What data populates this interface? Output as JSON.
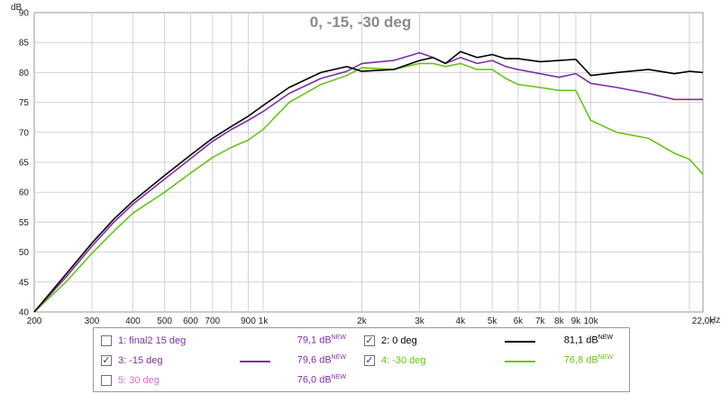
{
  "chart_data": {
    "type": "line",
    "title": "0, -15, -30 deg",
    "ylabel": "dB",
    "xunit": "Hz",
    "xscale": "log",
    "xlim": [
      200,
      22000
    ],
    "ylim": [
      40,
      90
    ],
    "yticks": [
      "40",
      "45",
      "50",
      "55",
      "60",
      "65",
      "70",
      "75",
      "80",
      "85",
      "90"
    ],
    "xticks": [
      {
        "v": 200,
        "label": "200"
      },
      {
        "v": 300,
        "label": "300"
      },
      {
        "v": 400,
        "label": "400"
      },
      {
        "v": 500,
        "label": "500"
      },
      {
        "v": 600,
        "label": "600"
      },
      {
        "v": 700,
        "label": "700"
      },
      {
        "v": 900,
        "label": "900"
      },
      {
        "v": 1000,
        "label": "1k"
      },
      {
        "v": 2000,
        "label": "2k"
      },
      {
        "v": 3000,
        "label": "3k"
      },
      {
        "v": 4000,
        "label": "4k"
      },
      {
        "v": 5000,
        "label": "5k"
      },
      {
        "v": 6000,
        "label": "6k"
      },
      {
        "v": 7000,
        "label": "7k"
      },
      {
        "v": 8000,
        "label": "8k"
      },
      {
        "v": 9000,
        "label": "9k"
      },
      {
        "v": 10000,
        "label": "10k"
      },
      {
        "v": 22000,
        "label": "22,0k"
      }
    ],
    "minor_x": [
      800,
      20000
    ],
    "series": [
      {
        "name": "0 deg",
        "color": "#000000",
        "x": [
          200,
          250,
          300,
          350,
          400,
          500,
          600,
          700,
          800,
          900,
          1000,
          1200,
          1500,
          1800,
          2000,
          2500,
          3000,
          3300,
          3600,
          4000,
          4500,
          5000,
          5500,
          6000,
          7000,
          8000,
          9000,
          10000,
          12000,
          15000,
          18000,
          20000,
          22000
        ],
        "y": [
          40,
          46.3,
          51.5,
          55.5,
          58.5,
          62.8,
          66.2,
          69,
          71,
          72.7,
          74.5,
          77.5,
          80,
          81,
          80.2,
          80.5,
          82,
          82.5,
          81.5,
          83.5,
          82.5,
          83,
          82.3,
          82.3,
          81.8,
          82,
          82.2,
          79.5,
          80,
          80.5,
          79.8,
          80.2,
          80
        ]
      },
      {
        "name": "-15 deg",
        "color": "#7f2fa3",
        "x": [
          200,
          250,
          300,
          350,
          400,
          500,
          600,
          700,
          800,
          900,
          1000,
          1200,
          1500,
          1800,
          2000,
          2500,
          3000,
          3300,
          3600,
          4000,
          4500,
          5000,
          5500,
          6000,
          7000,
          8000,
          9000,
          10000,
          12000,
          15000,
          18000,
          20000,
          22000
        ],
        "y": [
          40,
          45.8,
          51,
          55,
          58,
          62.2,
          65.6,
          68.5,
          70.5,
          72,
          73.5,
          76.5,
          79,
          80.2,
          81.5,
          82,
          83.3,
          82.5,
          81.5,
          82.5,
          81.5,
          82,
          81,
          80.5,
          79.8,
          79.2,
          79.8,
          78.2,
          77.5,
          76.5,
          75.5,
          75.5,
          75.5
        ]
      },
      {
        "name": "-30 deg",
        "color": "#67c319",
        "x": [
          200,
          250,
          300,
          350,
          400,
          500,
          600,
          700,
          800,
          900,
          1000,
          1200,
          1500,
          1800,
          2000,
          2500,
          3000,
          3300,
          3600,
          4000,
          4500,
          5000,
          5500,
          6000,
          7000,
          8000,
          9000,
          10000,
          12000,
          15000,
          18000,
          20000,
          22000
        ],
        "y": [
          40,
          45,
          49.8,
          53.5,
          56.5,
          60,
          63.2,
          65.8,
          67.5,
          68.7,
          70.5,
          75,
          78,
          79.5,
          80.8,
          80.5,
          81.5,
          81.5,
          81,
          81.5,
          80.5,
          80.5,
          79,
          78,
          77.5,
          77,
          77,
          72,
          70,
          69,
          66.5,
          65.5,
          63
        ]
      }
    ]
  },
  "legend": {
    "items": [
      {
        "id": "1",
        "label": "1: final2 15 deg",
        "checked": false,
        "value": "79,1 dB",
        "badge": "NEW",
        "color": "#7f2fa3"
      },
      {
        "id": "2",
        "label": "2: 0 deg",
        "checked": true,
        "value": "81,1 dB",
        "badge": "NEW",
        "color": "#000000"
      },
      {
        "id": "3",
        "label": "3: -15 deg",
        "checked": true,
        "value": "79,6 dB",
        "badge": "NEW",
        "color": "#7f2fa3"
      },
      {
        "id": "4",
        "label": "4: -30 deg",
        "checked": true,
        "value": "76,8 dB",
        "badge": "NEW",
        "color": "#67c319"
      },
      {
        "id": "5",
        "label": "5: 30 deg",
        "checked": false,
        "value": "76,0 dB",
        "badge": "NEW",
        "color": "#d070d0"
      }
    ]
  }
}
